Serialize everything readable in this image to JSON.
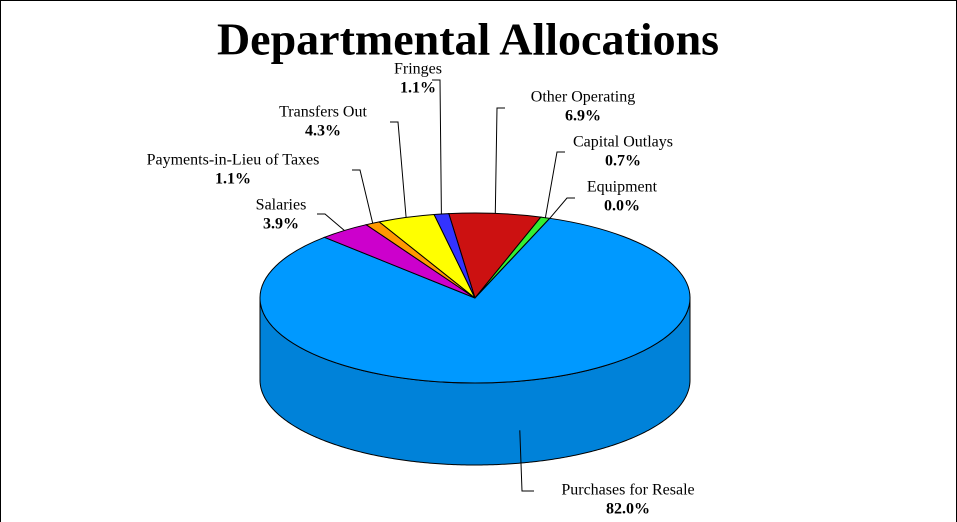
{
  "chart_data": {
    "type": "pie3d",
    "title": "Departmental Allocations",
    "categories": [
      "Other Operating",
      "Capital Outlays",
      "Equipment",
      "Purchases for Resale",
      "Salaries",
      "Payments-in-Lieu of Taxes",
      "Transfers Out",
      "Fringes"
    ],
    "values": [
      6.9,
      0.7,
      0.0,
      82.0,
      3.9,
      1.1,
      4.3,
      1.1
    ],
    "value_labels": [
      "6.9%",
      "0.7%",
      "0.0%",
      "82.0%",
      "3.9%",
      "1.1%",
      "4.3%",
      "1.1%"
    ],
    "colors": [
      "#cc1111",
      "#33ee33",
      "#22aa22",
      "#0099ff",
      "#cc00cc",
      "#ff9900",
      "#ffff00",
      "#3333ff"
    ]
  }
}
